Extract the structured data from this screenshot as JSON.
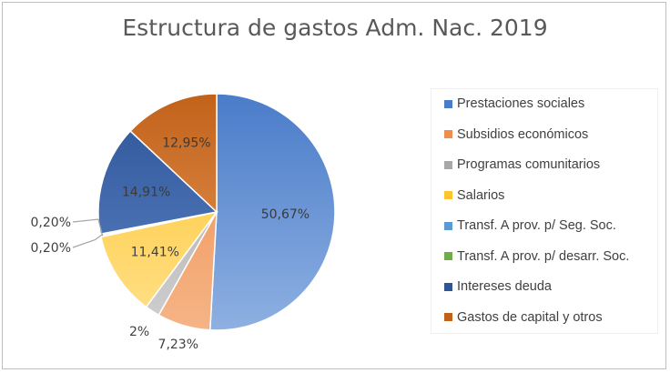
{
  "chart_data": {
    "type": "pie",
    "title": "Estructura de gastos Adm. Nac. 2019",
    "slices": [
      {
        "name": "Prestaciones sociales",
        "value": 50.67,
        "label": "50,67%",
        "color": "#4a7cc9",
        "light": "#8eb0e2"
      },
      {
        "name": "Subsidios económicos",
        "value": 7.23,
        "label": "7,23%",
        "color": "#ef8f4c",
        "light": "#f5b487"
      },
      {
        "name": "Programas comunitarios",
        "value": 2.0,
        "label": "2%",
        "color": "#a8a8a8",
        "light": "#cfcfcf"
      },
      {
        "name": "Salarios",
        "value": 11.41,
        "label": "11,41%",
        "color": "#fec52f",
        "light": "#ffe08a"
      },
      {
        "name": "Transf. A prov. p/ Seg. Soc.",
        "value": 0.2,
        "label": "0,20%",
        "color": "#5b9bd5",
        "light": "#9cc3e6"
      },
      {
        "name": "Transf. A prov. p/ desarr. Soc.",
        "value": 0.2,
        "label": "0,20%",
        "color": "#70ad47",
        "light": "#a9d08e"
      },
      {
        "name": "Intereses deuda",
        "value": 14.91,
        "label": "14,91%",
        "color": "#2e5597",
        "light": "#5a82c4"
      },
      {
        "name": "Gastos de capital y otros",
        "value": 12.95,
        "label": "12,95%",
        "color": "#c1621a",
        "light": "#e89a5c"
      }
    ],
    "legend_position": "right"
  }
}
